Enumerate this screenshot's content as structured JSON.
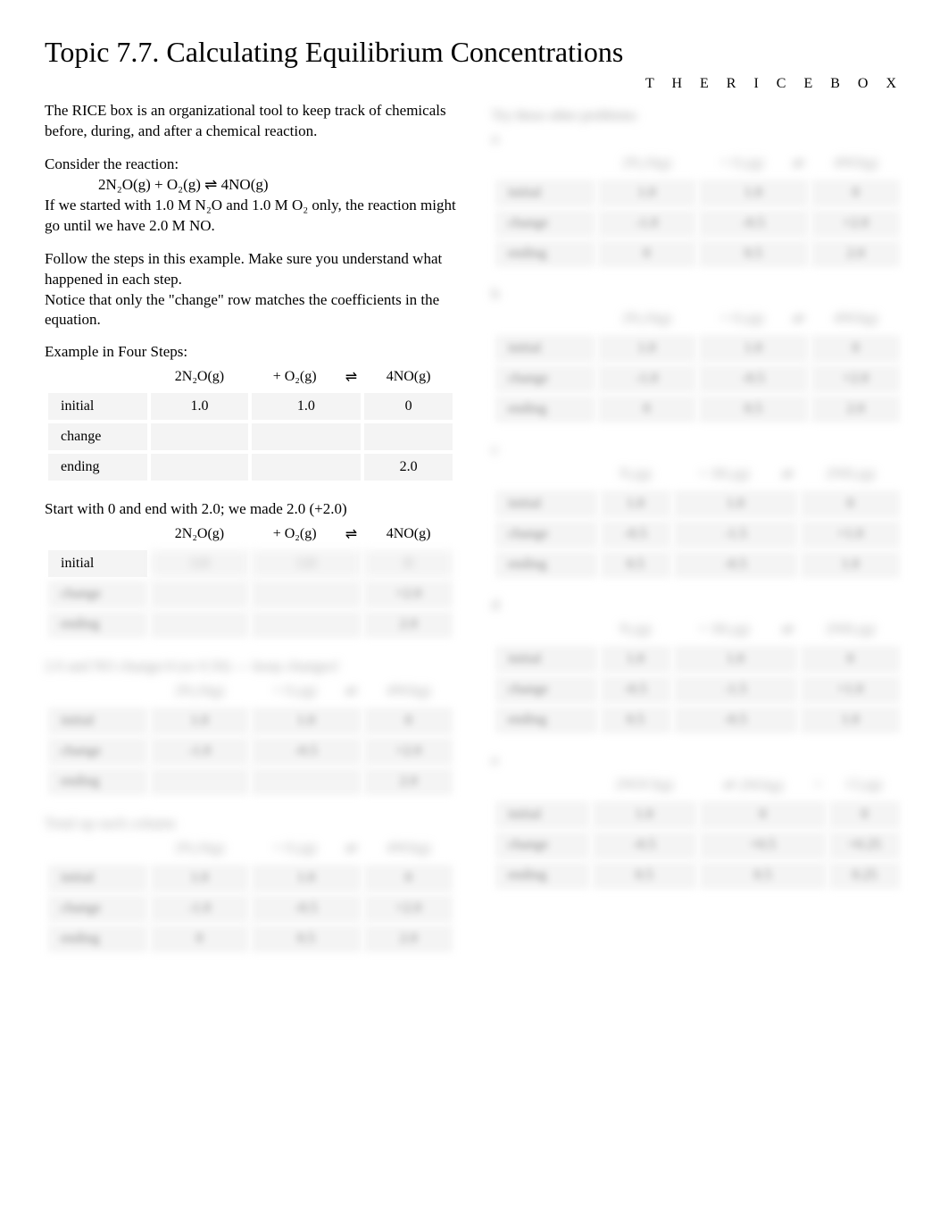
{
  "title": "Topic 7.7. Calculating Equilibrium Concentrations",
  "header_right": "T H E R I C E B O X",
  "intro_p1": "The RICE box is an organizational tool to keep track of chemicals before, during, and after a chemical reaction.",
  "intro_p2a": "Consider the reaction:",
  "intro_eq": "2N₂O(g) + O₂(g)  ⇌  4NO(g)",
  "intro_p2b": "If we started with 1.0 M N₂O and 1.0 M O₂ only, the reaction might go until we have 2.0 M NO.",
  "intro_p3": "Follow the steps in this example.  Make sure you understand what happened in each step.",
  "intro_p4": "Notice that only the \"change\" row matches the coefficients in the equation.",
  "example_label": "Example in Four Steps:",
  "rows": {
    "initial": "initial",
    "change": "change",
    "ending": "ending"
  },
  "headers_main": [
    "",
    "2N₂O(g)",
    "+ O₂(g)",
    "⇌",
    "4NO(g)"
  ],
  "step1": {
    "initial": [
      "1.0",
      "1.0",
      "0"
    ],
    "change": [
      "",
      "",
      ""
    ],
    "ending": [
      "",
      "",
      "2.0"
    ]
  },
  "caption2": "Start with 0 and end with 2.0; we made 2.0 (+2.0)",
  "step2": {
    "initial": [
      "1.0",
      "1.0",
      "0"
    ],
    "change": [
      "",
      "",
      "+2.0"
    ],
    "ending": [
      "",
      "",
      "2.0"
    ]
  },
  "caption3": "2.0 and NO change/4 (or 0.50) — keep changes!",
  "step3": {
    "initial": [
      "1.0",
      "1.0",
      "0"
    ],
    "change": [
      "-1.0",
      "-0.5",
      "+2.0"
    ],
    "ending": [
      "",
      "",
      "2.0"
    ]
  },
  "caption4": "Total up each column",
  "step4": {
    "initial": [
      "1.0",
      "1.0",
      "0"
    ],
    "change": [
      "-1.0",
      "-0.5",
      "+2.0"
    ],
    "ending": [
      "0",
      "0.5",
      "2.0"
    ]
  },
  "right_caption": "Try these other problems:",
  "right_tables": [
    {
      "label": "a",
      "headers": [
        "",
        "2N₂O(g)",
        "+ O₂(g)",
        "⇌",
        "4NO(g)"
      ],
      "initial": [
        "1.0",
        "1.0",
        "0"
      ],
      "change": [
        "-1.0",
        "-0.5",
        "+2.0"
      ],
      "ending": [
        "0",
        "0.5",
        "2.0"
      ]
    },
    {
      "label": "b",
      "headers": [
        "",
        "2N₂O(g)",
        "+ O₂(g)",
        "⇌",
        "4NO(g)"
      ],
      "initial": [
        "1.0",
        "1.0",
        "0"
      ],
      "change": [
        "-1.0",
        "-0.5",
        "+2.0"
      ],
      "ending": [
        "0",
        "0.5",
        "2.0"
      ]
    },
    {
      "label": "c",
      "headers": [
        "",
        "N₂(g)",
        "+ 3H₂(g)",
        "⇌",
        "2NH₃(g)"
      ],
      "initial": [
        "1.0",
        "1.0",
        "0"
      ],
      "change": [
        "-0.5",
        "-1.5",
        "+1.0"
      ],
      "ending": [
        "0.5",
        "-0.5",
        "1.0"
      ]
    },
    {
      "label": "d",
      "headers": [
        "",
        "N₂(g)",
        "+ 3H₂(g)",
        "⇌",
        "2NH₃(g)"
      ],
      "initial": [
        "1.0",
        "1.0",
        "0"
      ],
      "change": [
        "-0.5",
        "-1.5",
        "+1.0"
      ],
      "ending": [
        "0.5",
        "-0.5",
        "1.0"
      ]
    },
    {
      "label": "e",
      "headers": [
        "",
        "2NOCl(g)",
        "⇌ 2NO(g)",
        "+",
        "Cl₂(g)"
      ],
      "initial": [
        "1.0",
        "0",
        "0"
      ],
      "change": [
        "-0.5",
        "+0.5",
        "+0.25"
      ],
      "ending": [
        "0.5",
        "0.5",
        "0.25"
      ]
    }
  ],
  "style": {
    "background": "#ffffff",
    "cell_bg": "#f4f4f4",
    "blur_color": "#888888",
    "title_fontsize": 32,
    "body_fontsize": 17,
    "table_fontsize": 16
  }
}
